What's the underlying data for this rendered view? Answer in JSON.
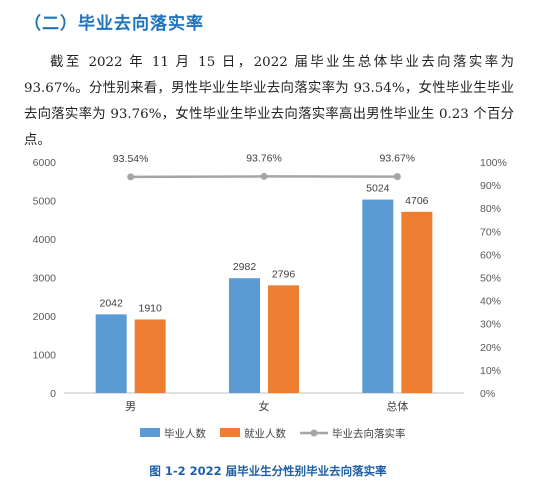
{
  "section_heading": "（二）毕业去向落实率",
  "paragraph": "截至 2022 年 11 月 15 日，2022 届毕业生总体毕业去向落实率为 93.67%。分性别来看，男性毕业生毕业去向落实率为 93.54%，女性毕业生毕业去向落实率为 93.76%，女性毕业生毕业去向落实率高出男性毕业生 0.23 个百分点。",
  "caption": "图 1-2  2022 届毕业生分性别毕业去向落实率",
  "chart_data": {
    "type": "bar",
    "categories": [
      "男",
      "女",
      "总体"
    ],
    "series": [
      {
        "name": "毕业人数",
        "type": "bar",
        "axis": "left",
        "color": "#5b9bd5",
        "values": [
          2042,
          2982,
          5024
        ]
      },
      {
        "name": "就业人数",
        "type": "bar",
        "axis": "left",
        "color": "#ed7d31",
        "values": [
          1910,
          2796,
          4706
        ]
      },
      {
        "name": "毕业去向落实率",
        "type": "line",
        "axis": "right",
        "color": "#a5a5a5",
        "values": [
          93.54,
          93.76,
          93.67
        ],
        "labels": [
          "93.54%",
          "93.76%",
          "93.67%"
        ]
      }
    ],
    "ylim": [
      0,
      6000
    ],
    "yticks": [
      "0",
      "1000",
      "2000",
      "3000",
      "4000",
      "5000",
      "6000"
    ],
    "y2lim": [
      0,
      100
    ],
    "y2ticks": [
      "0%",
      "10%",
      "20%",
      "30%",
      "40%",
      "50%",
      "60%",
      "70%",
      "80%",
      "90%",
      "100%"
    ],
    "grid": false,
    "legend_position": "bottom"
  }
}
